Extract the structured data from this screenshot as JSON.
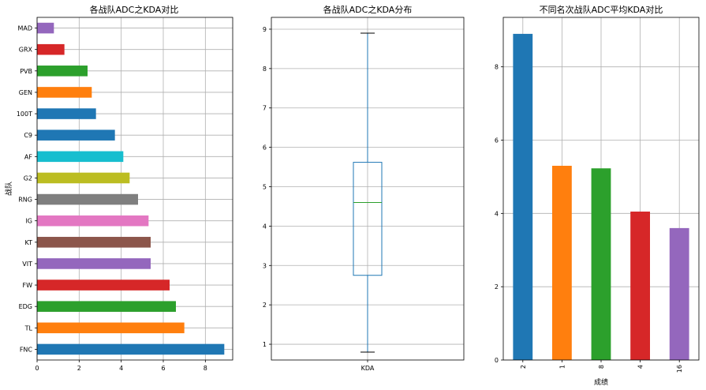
{
  "charts": [
    {
      "type": "bar",
      "orientation": "horizontal",
      "title": "各战队ADC之KDA对比",
      "xlabel": "",
      "ylabel": "战队",
      "xlim": [
        0,
        9.3
      ],
      "xticks": [
        "0",
        "2",
        "4",
        "6",
        "8"
      ],
      "categories": [
        "FNC",
        "TL",
        "EDG",
        "FW",
        "VIT",
        "KT",
        "IG",
        "RNG",
        "G2",
        "AF",
        "C9",
        "100T",
        "GEN",
        "PVB",
        "GRX",
        "MAD"
      ],
      "values": [
        8.9,
        7.0,
        6.6,
        6.3,
        5.4,
        5.4,
        5.3,
        4.8,
        4.4,
        4.1,
        3.7,
        2.8,
        2.6,
        2.4,
        1.3,
        0.8
      ],
      "colors": [
        "#1f77b4",
        "#ff7f0e",
        "#2ca02c",
        "#d62728",
        "#9467bd",
        "#8c564b",
        "#e377c2",
        "#7f7f7f",
        "#bcbd22",
        "#17becf",
        "#1f77b4",
        "#1f77b4",
        "#ff7f0e",
        "#2ca02c",
        "#d62728",
        "#9467bd"
      ],
      "grid": true
    },
    {
      "type": "box",
      "title": "各战队ADC之KDA分布",
      "xlabel": "",
      "ylabel": "",
      "category": "KDA",
      "ylim": [
        0.6,
        9.3
      ],
      "yticks": [
        "1",
        "2",
        "3",
        "4",
        "5",
        "6",
        "7",
        "8",
        "9"
      ],
      "stats": {
        "min": 0.8,
        "q1": 2.75,
        "median": 4.6,
        "q3": 5.62,
        "max": 8.9
      },
      "box_color": "#1f77b4",
      "median_color": "#2ca02c",
      "grid": true
    },
    {
      "type": "bar",
      "orientation": "vertical",
      "title": "不同名次战队ADC平均KDA对比",
      "xlabel": "成绩",
      "ylabel": "",
      "ylim": [
        0,
        9.35
      ],
      "yticks": [
        "0",
        "2",
        "4",
        "6",
        "8"
      ],
      "categories": [
        "2",
        "1",
        "8",
        "4",
        "16"
      ],
      "values": [
        8.9,
        5.3,
        5.23,
        4.05,
        3.6
      ],
      "colors": [
        "#1f77b4",
        "#ff7f0e",
        "#2ca02c",
        "#d62728",
        "#9467bd"
      ],
      "grid": true
    }
  ]
}
